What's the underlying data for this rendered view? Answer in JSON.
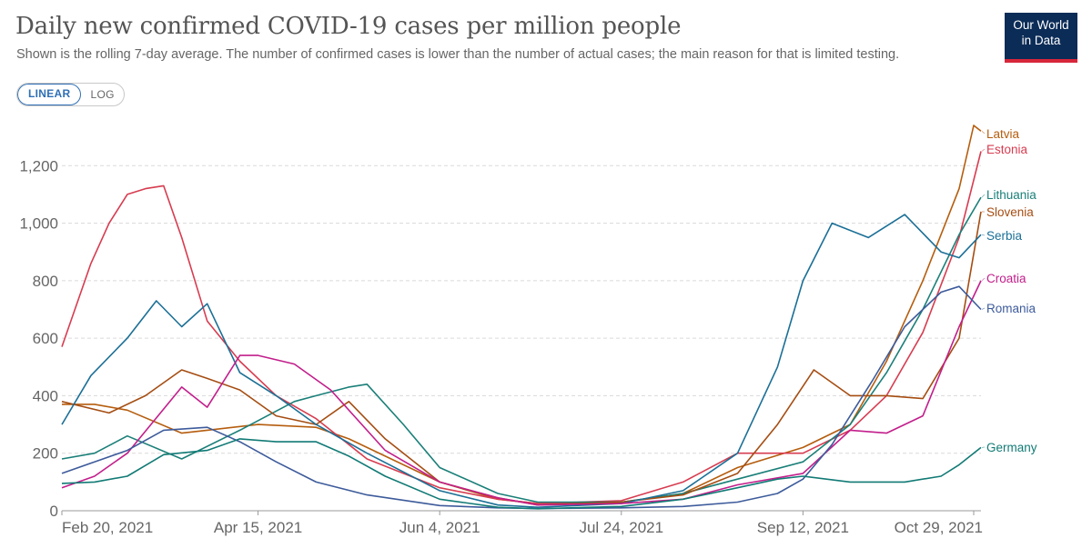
{
  "header": {
    "title": "Daily new confirmed COVID-19 cases per million people",
    "subtitle": "Shown is the rolling 7-day average. The number of confirmed cases is lower than the number of actual cases; the main reason for that is limited testing.",
    "logo_line1": "Our World",
    "logo_line2": "in Data"
  },
  "controls": {
    "linear_label": "LINEAR",
    "log_label": "LOG",
    "selected": "LINEAR"
  },
  "chart_data": {
    "type": "line",
    "title": "Daily new confirmed COVID-19 cases per million people",
    "x_start": "Feb 20, 2021",
    "x_end": "Oct 31, 2021",
    "x_ticks": [
      "Feb 20, 2021",
      "Apr 15, 2021",
      "Jun 4, 2021",
      "Jul 24, 2021",
      "Sep 12, 2021",
      "Oct 29, 2021"
    ],
    "y_ticks": [
      "0",
      "200",
      "400",
      "600",
      "800",
      "1,000",
      "1,200"
    ],
    "ylim": [
      0,
      1340
    ],
    "grid": "horizontal dashed",
    "legend": "line labels at right end",
    "series": [
      {
        "name": "Latvia",
        "color": "#b55d0e",
        "x": [
          "2021-02-20",
          "2021-03-01",
          "2021-03-10",
          "2021-03-25",
          "2021-04-01",
          "2021-04-15",
          "2021-05-01",
          "2021-05-10",
          "2021-05-20",
          "2021-06-04",
          "2021-06-20",
          "2021-07-01",
          "2021-07-24",
          "2021-08-10",
          "2021-08-25",
          "2021-09-12",
          "2021-09-25",
          "2021-10-05",
          "2021-10-15",
          "2021-10-25",
          "2021-10-29",
          "2021-10-31"
        ],
        "values": [
          370,
          370,
          350,
          270,
          280,
          300,
          290,
          250,
          190,
          100,
          40,
          25,
          30,
          60,
          150,
          220,
          300,
          520,
          800,
          1120,
          1340,
          1320
        ]
      },
      {
        "name": "Estonia",
        "color": "#d73c50",
        "x": [
          "2021-02-20",
          "2021-02-28",
          "2021-03-05",
          "2021-03-10",
          "2021-03-15",
          "2021-03-20",
          "2021-03-25",
          "2021-04-01",
          "2021-04-10",
          "2021-04-20",
          "2021-05-01",
          "2021-05-15",
          "2021-06-04",
          "2021-06-20",
          "2021-07-01",
          "2021-07-24",
          "2021-08-10",
          "2021-08-25",
          "2021-09-12",
          "2021-09-25",
          "2021-10-05",
          "2021-10-15",
          "2021-10-25",
          "2021-10-31"
        ],
        "values": [
          570,
          860,
          1000,
          1100,
          1120,
          1130,
          950,
          660,
          520,
          400,
          320,
          180,
          80,
          40,
          25,
          35,
          100,
          200,
          200,
          280,
          400,
          620,
          950,
          1250
        ]
      },
      {
        "name": "Lithuania",
        "color": "#1a7f78",
        "x": [
          "2021-02-20",
          "2021-03-01",
          "2021-03-10",
          "2021-03-25",
          "2021-04-10",
          "2021-04-25",
          "2021-05-01",
          "2021-05-10",
          "2021-05-15",
          "2021-05-25",
          "2021-06-04",
          "2021-06-20",
          "2021-07-01",
          "2021-07-24",
          "2021-08-10",
          "2021-08-25",
          "2021-09-12",
          "2021-09-25",
          "2021-10-05",
          "2021-10-15",
          "2021-10-25",
          "2021-10-31"
        ],
        "values": [
          180,
          200,
          260,
          180,
          280,
          380,
          400,
          430,
          440,
          300,
          150,
          60,
          30,
          30,
          60,
          110,
          170,
          300,
          480,
          700,
          960,
          1090
        ]
      },
      {
        "name": "Slovenia",
        "color": "#a54d12",
        "x": [
          "2021-02-20",
          "2021-03-05",
          "2021-03-15",
          "2021-03-25",
          "2021-04-01",
          "2021-04-10",
          "2021-04-20",
          "2021-05-01",
          "2021-05-10",
          "2021-05-20",
          "2021-06-04",
          "2021-06-20",
          "2021-07-01",
          "2021-07-24",
          "2021-08-10",
          "2021-08-25",
          "2021-09-05",
          "2021-09-15",
          "2021-09-25",
          "2021-10-05",
          "2021-10-15",
          "2021-10-25",
          "2021-10-31"
        ],
        "values": [
          380,
          340,
          400,
          490,
          460,
          420,
          330,
          300,
          380,
          250,
          100,
          45,
          20,
          30,
          55,
          130,
          300,
          490,
          400,
          400,
          390,
          600,
          1040
        ]
      },
      {
        "name": "Serbia",
        "color": "#1b6f96",
        "x": [
          "2021-02-20",
          "2021-02-28",
          "2021-03-10",
          "2021-03-18",
          "2021-03-25",
          "2021-04-01",
          "2021-04-10",
          "2021-04-20",
          "2021-05-01",
          "2021-05-15",
          "2021-06-04",
          "2021-06-20",
          "2021-07-01",
          "2021-07-24",
          "2021-08-10",
          "2021-08-25",
          "2021-09-05",
          "2021-09-12",
          "2021-09-20",
          "2021-09-30",
          "2021-10-10",
          "2021-10-20",
          "2021-10-25",
          "2021-10-31"
        ],
        "values": [
          300,
          470,
          600,
          730,
          640,
          720,
          480,
          400,
          300,
          200,
          70,
          20,
          12,
          25,
          70,
          200,
          500,
          800,
          1000,
          950,
          1030,
          900,
          880,
          960
        ]
      },
      {
        "name": "Croatia",
        "color": "#c21e8b",
        "x": [
          "2021-02-20",
          "2021-03-01",
          "2021-03-10",
          "2021-03-25",
          "2021-04-01",
          "2021-04-10",
          "2021-04-15",
          "2021-04-25",
          "2021-05-05",
          "2021-05-20",
          "2021-06-04",
          "2021-06-20",
          "2021-07-01",
          "2021-07-24",
          "2021-08-10",
          "2021-08-25",
          "2021-09-12",
          "2021-09-25",
          "2021-10-05",
          "2021-10-15",
          "2021-10-25",
          "2021-10-31"
        ],
        "values": [
          80,
          120,
          200,
          430,
          360,
          540,
          540,
          510,
          420,
          210,
          100,
          45,
          20,
          25,
          40,
          90,
          130,
          280,
          270,
          330,
          640,
          800
        ]
      },
      {
        "name": "Romania",
        "color": "#3d5b9b",
        "x": [
          "2021-02-20",
          "2021-03-01",
          "2021-03-10",
          "2021-03-20",
          "2021-04-01",
          "2021-04-10",
          "2021-04-20",
          "2021-05-01",
          "2021-05-15",
          "2021-06-04",
          "2021-06-20",
          "2021-07-01",
          "2021-07-24",
          "2021-08-10",
          "2021-08-25",
          "2021-09-05",
          "2021-09-12",
          "2021-09-20",
          "2021-10-01",
          "2021-10-10",
          "2021-10-20",
          "2021-10-25",
          "2021-10-31"
        ],
        "values": [
          130,
          170,
          210,
          280,
          290,
          240,
          170,
          100,
          55,
          18,
          10,
          8,
          10,
          15,
          30,
          60,
          110,
          230,
          450,
          640,
          760,
          780,
          700
        ]
      },
      {
        "name": "Germany",
        "color": "#117a75",
        "x": [
          "2021-02-20",
          "2021-03-01",
          "2021-03-10",
          "2021-03-20",
          "2021-04-01",
          "2021-04-10",
          "2021-04-20",
          "2021-05-01",
          "2021-05-10",
          "2021-05-20",
          "2021-06-04",
          "2021-06-20",
          "2021-07-01",
          "2021-07-24",
          "2021-08-10",
          "2021-08-25",
          "2021-09-05",
          "2021-09-12",
          "2021-09-25",
          "2021-10-10",
          "2021-10-20",
          "2021-10-25",
          "2021-10-31"
        ],
        "values": [
          95,
          100,
          120,
          195,
          210,
          250,
          240,
          240,
          190,
          120,
          40,
          12,
          7,
          15,
          40,
          80,
          110,
          120,
          100,
          100,
          120,
          160,
          220
        ]
      }
    ]
  }
}
